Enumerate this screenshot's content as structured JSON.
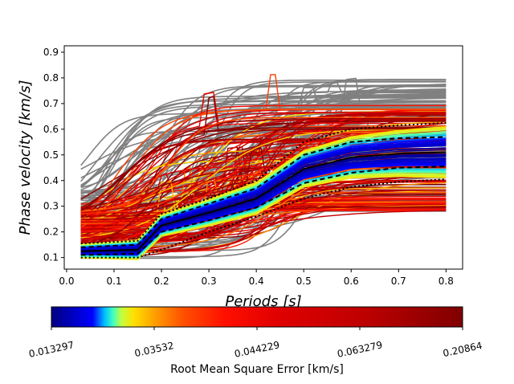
{
  "chart_data": {
    "type": "line",
    "title": "",
    "xlabel": "Periods [s]",
    "ylabel": "Phase velocity [km/s]",
    "xlim": [
      -0.005,
      0.835
    ],
    "ylim": [
      0.055,
      0.925
    ],
    "xticks": [
      "0.0",
      "0.1",
      "0.2",
      "0.3",
      "0.4",
      "0.5",
      "0.6",
      "0.7",
      "0.8"
    ],
    "yticks": [
      "0.1",
      "0.2",
      "0.3",
      "0.4",
      "0.5",
      "0.6",
      "0.7",
      "0.8",
      "0.9"
    ],
    "grid": false,
    "colorbar": {
      "label": "Root Mean Square Error [km/s]",
      "colormap": "jet",
      "tick_labels": [
        "0.013297",
        "0.03532",
        "0.044229",
        "0.063279",
        "0.20864"
      ]
    },
    "series": [
      {
        "role": "mean",
        "style": "solid",
        "color": "#000000",
        "x": [
          0.03,
          0.15,
          0.2,
          0.3,
          0.4,
          0.5,
          0.6,
          0.7,
          0.8
        ],
        "y": [
          0.125,
          0.13,
          0.225,
          0.275,
          0.33,
          0.445,
          0.49,
          0.505,
          0.51
        ]
      },
      {
        "role": "plus-one-std",
        "style": "dashed",
        "color": "#000000",
        "x": [
          0.03,
          0.15,
          0.2,
          0.3,
          0.4,
          0.5,
          0.6,
          0.7,
          0.8
        ],
        "y": [
          0.14,
          0.15,
          0.25,
          0.31,
          0.37,
          0.5,
          0.55,
          0.565,
          0.57
        ]
      },
      {
        "role": "minus-one-std",
        "style": "dashed",
        "color": "#000000",
        "x": [
          0.03,
          0.15,
          0.2,
          0.3,
          0.4,
          0.5,
          0.6,
          0.7,
          0.8
        ],
        "y": [
          0.11,
          0.115,
          0.2,
          0.245,
          0.295,
          0.39,
          0.43,
          0.45,
          0.455
        ]
      },
      {
        "role": "plus-two-std",
        "style": "dotted",
        "color": "#000000",
        "x": [
          0.03,
          0.15,
          0.2,
          0.3,
          0.4,
          0.5,
          0.6,
          0.7,
          0.8
        ],
        "y": [
          0.155,
          0.165,
          0.27,
          0.33,
          0.4,
          0.55,
          0.6,
          0.615,
          0.625
        ]
      },
      {
        "role": "minus-two-std",
        "style": "dotted",
        "color": "#000000",
        "x": [
          0.03,
          0.15,
          0.2,
          0.3,
          0.4,
          0.5,
          0.6,
          0.7,
          0.8
        ],
        "y": [
          0.1,
          0.1,
          0.13,
          0.2,
          0.26,
          0.33,
          0.375,
          0.395,
          0.405
        ]
      }
    ]
  }
}
